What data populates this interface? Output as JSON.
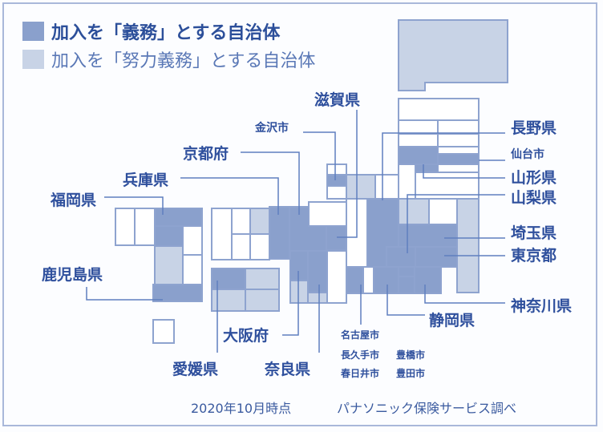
{
  "legend": {
    "mandatory": {
      "label": "加入を「義務」とする自治体",
      "color": "#8aa0cc"
    },
    "effort": {
      "label": "加入を「努力義務」とする自治体",
      "color": "#c8d3e6"
    },
    "none_color": "#ffffff"
  },
  "labels": {
    "shiga": "滋賀県",
    "kanazawa": "金沢市",
    "kyoto": "京都府",
    "hyogo": "兵庫県",
    "fukuoka": "福岡県",
    "kagoshima": "鹿児島県",
    "osaka": "大阪府",
    "ehime": "愛媛県",
    "nara": "奈良県",
    "nagoya": "名古屋市",
    "nagakute": "長久手市",
    "toyohashi": "豊橋市",
    "kasugai": "春日井市",
    "toyota": "豊田市",
    "shizuoka": "静岡県",
    "nagano": "長野県",
    "sendai": "仙台市",
    "yamagata": "山形県",
    "yamanashi": "山梨県",
    "saitama": "埼玉県",
    "tokyo": "東京都",
    "kanagawa": "神奈川県"
  },
  "tiles": [
    "effort",
    "none",
    "none",
    "mandatory",
    "mandatory",
    "none",
    "none",
    "effort",
    "mandatory",
    "dark"
  ],
  "footer": {
    "date": "2020年10月時点",
    "source": "パナソニック保険サービス調べ"
  }
}
